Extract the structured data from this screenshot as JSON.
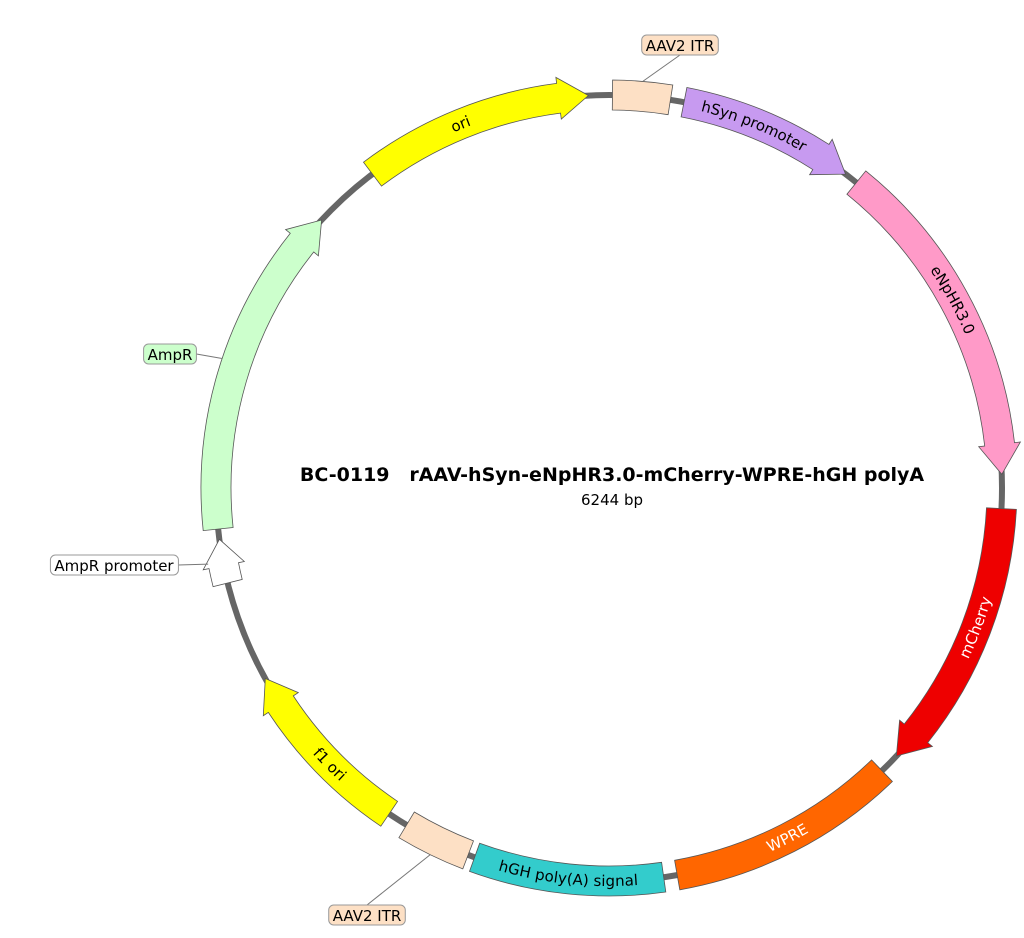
{
  "map": {
    "title": "BC-0119   rAAV-hSyn-eNpHR3.0-mCherry-WPRE-hGH polyA",
    "size": "6244 bp",
    "features": [
      {
        "name": "AAV2 ITR"
      },
      {
        "name": "hSyn promoter"
      },
      {
        "name": "eNpHR3.0"
      },
      {
        "name": "mCherry"
      },
      {
        "name": "WPRE"
      },
      {
        "name": "hGH poly(A) signal"
      },
      {
        "name": "AAV2 ITR"
      },
      {
        "name": "f1 ori"
      },
      {
        "name": "AmpR promoter"
      },
      {
        "name": "AmpR"
      },
      {
        "name": "ori"
      }
    ]
  }
}
